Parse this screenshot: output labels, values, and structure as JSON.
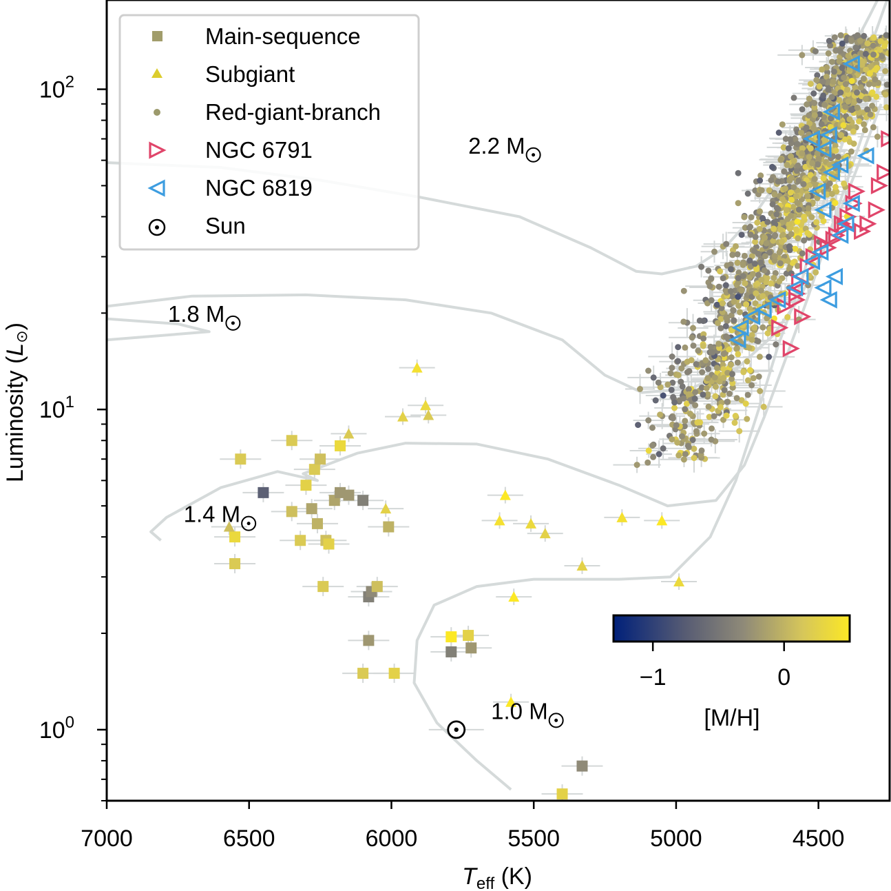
{
  "chart_data": {
    "type": "scatter",
    "title": "",
    "xlabel": "T_eff (K)",
    "xlabel_main": "T",
    "xlabel_sub": "eff",
    "xlabel_unit": " (K)",
    "ylabel": "Luminosity (L☉)",
    "ylabel_main": "Luminosity (",
    "ylabel_symbol": "L",
    "ylabel_sub": "⊙",
    "ylabel_close": ")",
    "x_inverted": true,
    "xlim": [
      7000,
      4250
    ],
    "ylim": [
      0.6,
      190
    ],
    "yscale": "log",
    "x_ticks": [
      7000,
      6500,
      6000,
      5500,
      5000,
      4500
    ],
    "x_tick_labels": [
      "7000",
      "6500",
      "6000",
      "5500",
      "5000",
      "4500"
    ],
    "y_ticks": [
      1,
      10,
      100
    ],
    "y_tick_labels": [
      {
        "base": "10",
        "exp": "0"
      },
      {
        "base": "10",
        "exp": "1"
      },
      {
        "base": "10",
        "exp": "2"
      }
    ],
    "legend": {
      "position": "top-left",
      "entries": [
        {
          "label": "Main-sequence",
          "marker": "square",
          "color": "#a19d6b"
        },
        {
          "label": "Subgiant",
          "marker": "triangle",
          "color": "#dccd2d"
        },
        {
          "label": "Red-giant-branch",
          "marker": "circle",
          "color": "#9c9a6c"
        },
        {
          "label": "NGC 6791",
          "marker": "triangle-right-open",
          "color": "#e0456a"
        },
        {
          "label": "NGC 6819",
          "marker": "triangle-left-open",
          "color": "#3d9de0"
        },
        {
          "label": "Sun",
          "marker": "sun",
          "color": "#000000"
        }
      ]
    },
    "colorbar": {
      "label": "[M/H]",
      "vmin": -1.3,
      "vmax": 0.5,
      "ticks": [
        -1,
        0
      ],
      "tick_labels": [
        "−1",
        "0"
      ],
      "colormap": [
        "#00207a",
        "#565b73",
        "#8f8a78",
        "#d6c65a",
        "#fce825"
      ],
      "position": "lower-right"
    },
    "tracks": [
      {
        "label": "1.0 M",
        "mass": 1.0,
        "points": [
          [
            5580,
            0.65
          ],
          [
            5700,
            0.8
          ],
          [
            5840,
            1.05
          ],
          [
            5920,
            1.4
          ],
          [
            5910,
            1.9
          ],
          [
            5850,
            2.45
          ],
          [
            5700,
            2.8
          ],
          [
            5500,
            2.95
          ],
          [
            5200,
            2.95
          ],
          [
            5020,
            3.0
          ],
          [
            4880,
            4.0
          ],
          [
            4790,
            6.0
          ],
          [
            4710,
            10
          ],
          [
            4640,
            16
          ],
          [
            4560,
            25
          ],
          [
            4480,
            45
          ],
          [
            4380,
            85
          ],
          [
            4300,
            150
          ],
          [
            4250,
            200
          ]
        ]
      },
      {
        "label": "1.4 M",
        "mass": 1.4,
        "points": [
          [
            6810,
            3.9
          ],
          [
            6845,
            4.15
          ],
          [
            6790,
            4.6
          ],
          [
            6600,
            5.7
          ],
          [
            6400,
            6.4
          ],
          [
            6260,
            6.0
          ],
          [
            6310,
            6.3
          ],
          [
            6120,
            7.3
          ],
          [
            5950,
            7.85
          ],
          [
            5700,
            7.8
          ],
          [
            5450,
            7.0
          ],
          [
            5200,
            5.8
          ],
          [
            5030,
            5.0
          ],
          [
            4860,
            5.2
          ],
          [
            4760,
            6.7
          ],
          [
            4690,
            9.5
          ],
          [
            4620,
            14
          ],
          [
            4540,
            22
          ],
          [
            4450,
            38
          ],
          [
            4350,
            70
          ],
          [
            4260,
            120
          ]
        ]
      },
      {
        "label": "1.8 M",
        "mass": 1.8,
        "points": [
          [
            7000,
            16.5
          ],
          [
            6640,
            17.5
          ],
          [
            6750,
            18.5
          ],
          [
            7000,
            19.2
          ],
          [
            7000,
            21
          ],
          [
            6700,
            22.6
          ],
          [
            6300,
            22.8
          ],
          [
            5950,
            22.0
          ],
          [
            5650,
            20.0
          ],
          [
            5400,
            16.5
          ],
          [
            5250,
            12.8
          ],
          [
            5120,
            11.3
          ],
          [
            4950,
            11.6
          ],
          [
            4780,
            13.6
          ],
          [
            4660,
            17
          ],
          [
            4570,
            22
          ],
          [
            4470,
            33
          ],
          [
            4370,
            55
          ],
          [
            4280,
            90
          ]
        ]
      },
      {
        "label": "2.2 M",
        "mass": 2.2,
        "points": [
          [
            7000,
            59
          ],
          [
            6600,
            57
          ],
          [
            6250,
            52
          ],
          [
            5900,
            46
          ],
          [
            5550,
            40
          ],
          [
            5300,
            32
          ],
          [
            5140,
            27
          ],
          [
            5050,
            26.5
          ],
          [
            4930,
            28
          ],
          [
            4830,
            32
          ],
          [
            4730,
            40
          ],
          [
            4620,
            55
          ],
          [
            4520,
            80
          ],
          [
            4420,
            115
          ],
          [
            4320,
            170
          ],
          [
            4280,
            200
          ]
        ]
      }
    ],
    "track_labels": [
      {
        "text": "2.2 M",
        "teff": 5730,
        "lum": 63
      },
      {
        "text": "1.8 M",
        "teff": 6785,
        "lum": 18.8
      },
      {
        "text": "1.4 M",
        "teff": 6730,
        "lum": 4.45
      },
      {
        "text": "1.0 M",
        "teff": 5650,
        "lum": 1.08
      }
    ],
    "sun": {
      "label": "Sun",
      "teff": 5772,
      "lum": 1.0
    },
    "main_sequence": [
      [
        6550,
        3.3,
        0.1
      ],
      [
        6550,
        4.0,
        0.3
      ],
      [
        6530,
        7.0,
        0.1
      ],
      [
        6450,
        5.5,
        -0.8
      ],
      [
        6350,
        8.0,
        0.1
      ],
      [
        6350,
        4.8,
        0.0
      ],
      [
        6320,
        3.9,
        0.1
      ],
      [
        6300,
        5.8,
        0.2
      ],
      [
        6270,
        6.5,
        0.1
      ],
      [
        6250,
        7.0,
        0.0
      ],
      [
        6240,
        2.8,
        0.1
      ],
      [
        6230,
        3.9,
        0.0
      ],
      [
        6220,
        3.8,
        0.2
      ],
      [
        6200,
        5.2,
        -0.2
      ],
      [
        6180,
        5.5,
        -0.3
      ],
      [
        6180,
        7.7,
        0.3
      ],
      [
        6150,
        5.4,
        -0.3
      ],
      [
        6100,
        5.2,
        -0.5
      ],
      [
        6080,
        2.6,
        -0.5
      ],
      [
        6080,
        1.9,
        -0.3
      ],
      [
        6070,
        2.7,
        -0.4
      ],
      [
        6050,
        2.8,
        0.0
      ],
      [
        6100,
        1.5,
        0.1
      ],
      [
        6010,
        4.3,
        -0.1
      ],
      [
        5990,
        1.5,
        0.2
      ],
      [
        5790,
        1.95,
        0.5
      ],
      [
        5790,
        1.75,
        -0.5
      ],
      [
        5730,
        1.97,
        0.2
      ],
      [
        5720,
        1.8,
        -0.3
      ],
      [
        5330,
        0.77,
        -0.4
      ],
      [
        5400,
        0.63,
        0.2
      ],
      [
        6280,
        4.9,
        -0.2
      ],
      [
        6260,
        4.4,
        -0.1
      ]
    ],
    "subgiants": [
      [
        6570,
        4.3,
        0.0
      ],
      [
        5910,
        13.5,
        0.4
      ],
      [
        5880,
        10.3,
        0.3
      ],
      [
        5870,
        9.6,
        0.1
      ],
      [
        5960,
        9.5,
        0.2
      ],
      [
        5600,
        5.4,
        0.5
      ],
      [
        5620,
        4.5,
        0.4
      ],
      [
        5510,
        4.4,
        0.3
      ],
      [
        5460,
        4.1,
        0.2
      ],
      [
        5190,
        4.6,
        0.4
      ],
      [
        5050,
        4.5,
        0.5
      ],
      [
        4990,
        2.9,
        0.3
      ],
      [
        5570,
        2.6,
        0.5
      ],
      [
        5580,
        1.22,
        0.5
      ],
      [
        5330,
        3.25,
        0.2
      ],
      [
        6150,
        8.4,
        0.1
      ],
      [
        6020,
        4.9,
        0.2
      ]
    ],
    "rgb_summary": "~1500 red-giant-branch stars spanning Teff 5200–4250 K and L 6–160 L☉, color-coded by [M/H]",
    "ngc6791": [
      [
        4640,
        18
      ],
      [
        4620,
        21
      ],
      [
        4580,
        22
      ],
      [
        4570,
        25
      ],
      [
        4560,
        19.5
      ],
      [
        4540,
        28
      ],
      [
        4520,
        30
      ],
      [
        4490,
        33
      ],
      [
        4470,
        32
      ],
      [
        4440,
        35
      ],
      [
        4420,
        38
      ],
      [
        4400,
        40
      ],
      [
        4380,
        44
      ],
      [
        4370,
        48
      ],
      [
        4350,
        36
      ],
      [
        4330,
        38
      ],
      [
        4300,
        42
      ],
      [
        4290,
        50
      ],
      [
        4270,
        55
      ],
      [
        4255,
        70
      ],
      [
        4600,
        15.5
      ],
      [
        4580,
        23
      ],
      [
        4450,
        34
      ],
      [
        4410,
        37
      ]
    ],
    "ngc6819": [
      [
        4780,
        16.5
      ],
      [
        4770,
        18
      ],
      [
        4730,
        19.5
      ],
      [
        4690,
        20.5
      ],
      [
        4640,
        22
      ],
      [
        4580,
        24
      ],
      [
        4560,
        26
      ],
      [
        4520,
        29
      ],
      [
        4490,
        31
      ],
      [
        4480,
        24
      ],
      [
        4460,
        22
      ],
      [
        4440,
        26
      ],
      [
        4420,
        35
      ],
      [
        4400,
        38
      ],
      [
        4380,
        44
      ],
      [
        4480,
        42
      ],
      [
        4500,
        48
      ],
      [
        4450,
        55
      ],
      [
        4420,
        58
      ],
      [
        4480,
        65
      ],
      [
        4460,
        72
      ],
      [
        4450,
        85
      ],
      [
        4380,
        120
      ],
      [
        4330,
        62
      ],
      [
        4520,
        70
      ]
    ]
  }
}
